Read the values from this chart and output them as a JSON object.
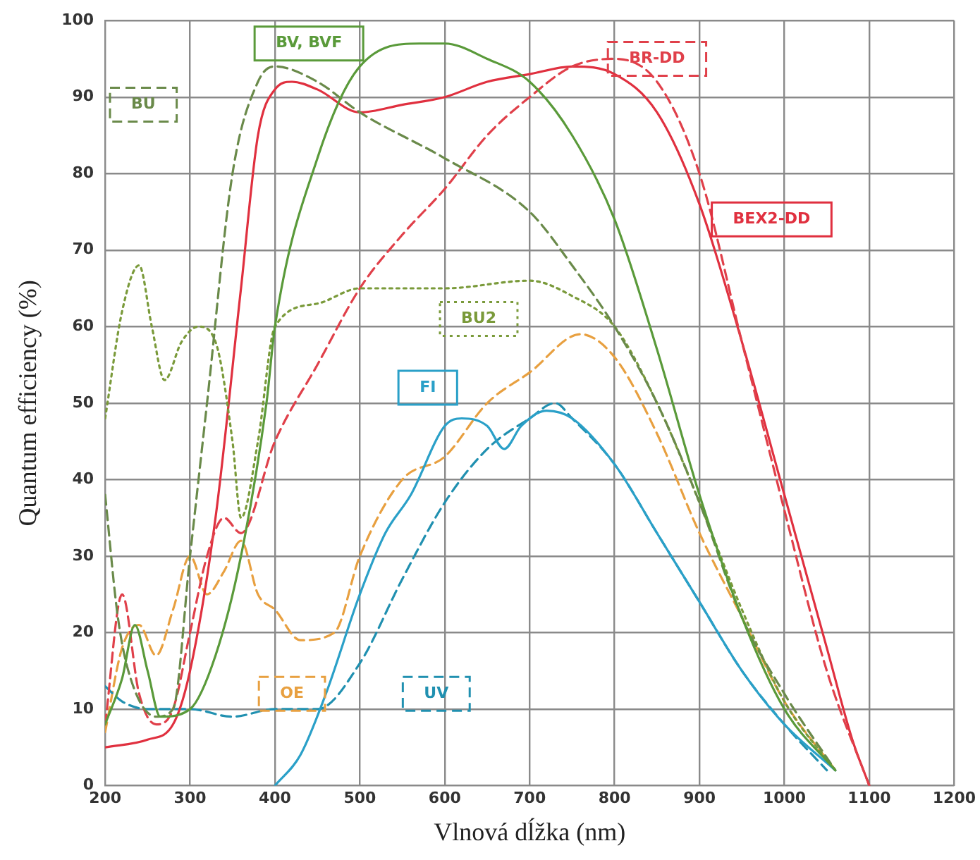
{
  "chart_data": {
    "type": "line",
    "xlabel": "Vlnová dĺžka (nm)",
    "ylabel": "Quantum efficiency (%)",
    "xlim": [
      200,
      1200
    ],
    "xticks": [
      200,
      300,
      400,
      500,
      600,
      700,
      800,
      900,
      1000,
      1100,
      1200
    ],
    "ylim": [
      0,
      100
    ],
    "yticks": [
      0,
      10,
      20,
      30,
      40,
      50,
      60,
      70,
      80,
      90,
      100
    ],
    "grid": true,
    "legend": false,
    "marker": "none",
    "series": [
      {
        "name": "BV, BVF",
        "color": "#5a9a3a",
        "line_style": "solid",
        "x": [
          200,
          220,
          235,
          250,
          265,
          300,
          330,
          360,
          390,
          400,
          450,
          500,
          570,
          600,
          650,
          700,
          750,
          800,
          850,
          900,
          950,
          1000,
          1060
        ],
        "values": [
          8,
          14,
          21,
          15,
          9,
          10,
          17,
          30,
          50,
          60,
          82,
          94,
          97,
          97,
          95,
          92,
          85,
          74,
          57,
          38,
          22,
          10,
          2
        ]
      },
      {
        "name": "BU",
        "color": "#6a8a4a",
        "line_style": "dashed",
        "x": [
          200,
          215,
          230,
          260,
          280,
          300,
          320,
          350,
          380,
          400,
          450,
          500,
          600,
          700,
          750,
          800,
          850,
          900,
          950,
          1000,
          1060
        ],
        "values": [
          38,
          22,
          14,
          9,
          10,
          30,
          50,
          80,
          92,
          94,
          92,
          88,
          82,
          75,
          68,
          60,
          50,
          37,
          22,
          12,
          2
        ]
      },
      {
        "name": "BU2",
        "color": "#7a9a3a",
        "line_style": "dotted",
        "x": [
          200,
          220,
          240,
          255,
          270,
          290,
          310,
          330,
          350,
          360,
          380,
          400,
          450,
          500,
          600,
          700,
          750,
          800,
          850,
          900,
          950,
          1000,
          1060
        ],
        "values": [
          48,
          62,
          68,
          60,
          53,
          58,
          60,
          58,
          45,
          35,
          45,
          60,
          63,
          65,
          65,
          66,
          64,
          60,
          50,
          37,
          23,
          11,
          2
        ]
      },
      {
        "name": "BR-DD",
        "color": "#e0404a",
        "line_style": "dashed",
        "x": [
          200,
          220,
          240,
          260,
          280,
          300,
          320,
          340,
          360,
          400,
          450,
          500,
          550,
          600,
          650,
          700,
          750,
          800,
          850,
          900,
          950,
          1000,
          1050,
          1100
        ],
        "values": [
          8,
          25,
          12,
          8,
          10,
          20,
          30,
          35,
          33,
          45,
          55,
          65,
          72,
          78,
          85,
          90,
          94,
          95,
          92,
          80,
          58,
          36,
          15,
          0
        ]
      },
      {
        "name": "BEX2-DD",
        "color": "#e0303f",
        "line_style": "solid",
        "x": [
          200,
          250,
          280,
          300,
          330,
          360,
          380,
          400,
          420,
          450,
          500,
          550,
          600,
          650,
          700,
          750,
          800,
          850,
          900,
          950,
          1000,
          1050,
          1080,
          1100
        ],
        "values": [
          5,
          6,
          8,
          15,
          35,
          65,
          85,
          91,
          92,
          91,
          88,
          89,
          90,
          92,
          93,
          94,
          93,
          88,
          76,
          58,
          38,
          18,
          6,
          0
        ]
      },
      {
        "name": "FI",
        "color": "#2aa0c8",
        "line_style": "solid",
        "x": [
          400,
          430,
          460,
          500,
          530,
          560,
          600,
          620,
          650,
          670,
          690,
          720,
          750,
          800,
          850,
          900,
          950,
          1000,
          1060
        ],
        "values": [
          0,
          4,
          12,
          25,
          33,
          38,
          47,
          48,
          47,
          44,
          47,
          49,
          48,
          42,
          33,
          24,
          15,
          8,
          2
        ]
      },
      {
        "name": "UV",
        "color": "#2090b0",
        "line_style": "dashed",
        "x": [
          200,
          220,
          250,
          300,
          350,
          400,
          450,
          500,
          550,
          600,
          650,
          700,
          730,
          750,
          800,
          850,
          900,
          950,
          1000,
          1050
        ],
        "values": [
          13,
          11,
          10,
          10,
          9,
          10,
          10,
          16,
          27,
          37,
          44,
          48,
          50,
          48,
          42,
          33,
          24,
          15,
          8,
          2
        ]
      },
      {
        "name": "OE",
        "color": "#e8a040",
        "line_style": "dashed",
        "x": [
          200,
          220,
          240,
          260,
          280,
          300,
          320,
          340,
          360,
          380,
          400,
          430,
          470,
          500,
          550,
          600,
          650,
          700,
          760,
          800,
          850,
          900,
          950,
          1000,
          1060
        ],
        "values": [
          7,
          18,
          21,
          17,
          23,
          30,
          25,
          28,
          32,
          25,
          23,
          19,
          20,
          30,
          40,
          43,
          50,
          54,
          59,
          56,
          46,
          33,
          22,
          11,
          2
        ]
      }
    ]
  }
}
